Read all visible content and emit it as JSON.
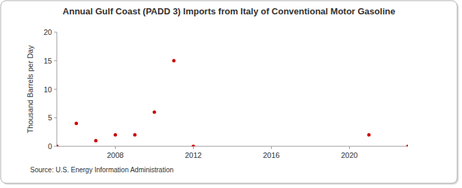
{
  "chart_data": {
    "type": "scatter",
    "title": "Annual Gulf Coast (PADD 3) Imports from Italy of Conventional Motor Gasoline",
    "y_label": "Thousand Barrels per Day",
    "source": "Source: U.S. Energy Information Administration",
    "x": [
      2005,
      2006,
      2007,
      2008,
      2009,
      2010,
      2011,
      2012,
      2021,
      2023
    ],
    "values": [
      0,
      4,
      1,
      2,
      2,
      6,
      15,
      0,
      2,
      0
    ],
    "color": "#cc0000",
    "marker": "circle",
    "xlim": [
      2005,
      2023
    ],
    "xticks": [
      2008,
      2012,
      2016,
      2020
    ],
    "ylim": [
      0,
      20
    ],
    "yticks": [
      0,
      5,
      10,
      15,
      20
    ],
    "grid": false
  }
}
